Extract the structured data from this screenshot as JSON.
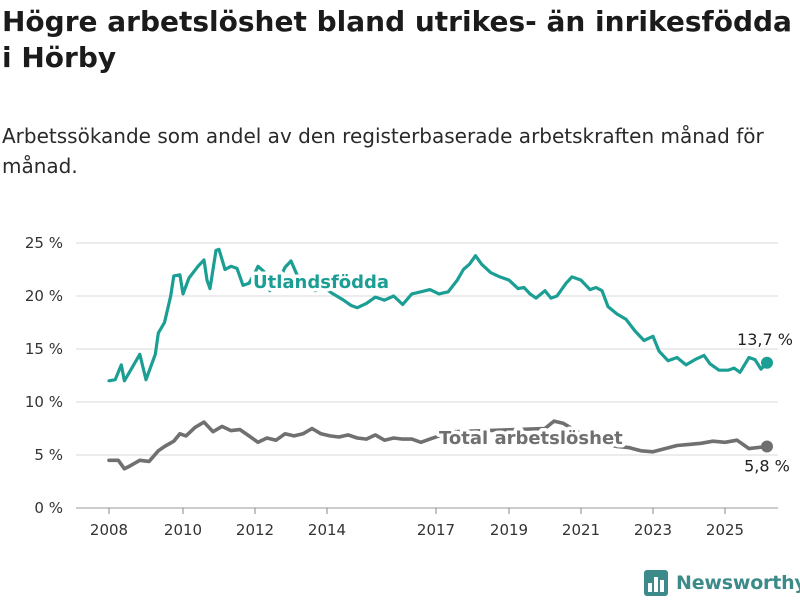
{
  "header": {
    "title": "Högre arbetslöshet bland utrikes- än inrikesfödda i Hörby",
    "subtitle": "Arbetssökande som andel av den registerbaserade arbetskraften månad för månad."
  },
  "brand": {
    "name": "Newsworthy",
    "logo_icon": "bar-chart-icon",
    "color": "#3d8a8a"
  },
  "chart_data": {
    "type": "line",
    "title": "",
    "xlabel": "",
    "ylabel": "",
    "x_ticks": [
      "2008",
      "2010",
      "2012",
      "2014",
      "2017",
      "2019",
      "2021",
      "2023",
      "2025"
    ],
    "y_ticks": [
      "0 %",
      "5 %",
      "10 %",
      "15 %",
      "20 %",
      "25 %"
    ],
    "ylim": [
      0,
      25
    ],
    "grid": true,
    "series": [
      {
        "name": "Utlandsfödda",
        "color": "#1b9e93",
        "end_label": "13,7 %",
        "points": [
          [
            "2008-01",
            12.0
          ],
          [
            "2008-03",
            12.1
          ],
          [
            "2008-05",
            13.5
          ],
          [
            "2008-06",
            12.0
          ],
          [
            "2008-08",
            13.0
          ],
          [
            "2008-11",
            14.5
          ],
          [
            "2009-01",
            12.1
          ],
          [
            "2009-04",
            14.5
          ],
          [
            "2009-05",
            16.5
          ],
          [
            "2009-07",
            17.5
          ],
          [
            "2009-09",
            20.0
          ],
          [
            "2009-10",
            21.9
          ],
          [
            "2009-12",
            22.0
          ],
          [
            "2010-01",
            20.2
          ],
          [
            "2010-03",
            21.7
          ],
          [
            "2010-06",
            22.8
          ],
          [
            "2010-08",
            23.4
          ],
          [
            "2010-09",
            21.5
          ],
          [
            "2010-10",
            20.7
          ],
          [
            "2010-12",
            24.3
          ],
          [
            "2011-01",
            24.4
          ],
          [
            "2011-03",
            22.5
          ],
          [
            "2011-05",
            22.8
          ],
          [
            "2011-07",
            22.6
          ],
          [
            "2011-09",
            21.0
          ],
          [
            "2011-11",
            21.2
          ],
          [
            "2012-01",
            22.2
          ],
          [
            "2012-02",
            22.8
          ],
          [
            "2012-04",
            22.3
          ],
          [
            "2012-06",
            20.5
          ],
          [
            "2012-09",
            21.5
          ],
          [
            "2012-11",
            22.7
          ],
          [
            "2013-01",
            23.3
          ],
          [
            "2013-03",
            22.0
          ],
          [
            "2013-06",
            21.2
          ],
          [
            "2013-09",
            20.5
          ],
          [
            "2013-12",
            20.8
          ],
          [
            "2014-03",
            20.2
          ],
          [
            "2014-06",
            19.7
          ],
          [
            "2014-09",
            19.1
          ],
          [
            "2014-11",
            18.9
          ],
          [
            "2015-02",
            19.3
          ],
          [
            "2015-05",
            19.9
          ],
          [
            "2015-08",
            19.6
          ],
          [
            "2015-11",
            20.0
          ],
          [
            "2016-02",
            19.2
          ],
          [
            "2016-05",
            20.2
          ],
          [
            "2016-08",
            20.4
          ],
          [
            "2016-11",
            20.6
          ],
          [
            "2017-02",
            20.2
          ],
          [
            "2017-05",
            20.4
          ],
          [
            "2017-08",
            21.5
          ],
          [
            "2017-10",
            22.5
          ],
          [
            "2017-12",
            23.0
          ],
          [
            "2018-02",
            23.8
          ],
          [
            "2018-04",
            23.0
          ],
          [
            "2018-07",
            22.2
          ],
          [
            "2018-10",
            21.8
          ],
          [
            "2019-01",
            21.5
          ],
          [
            "2019-04",
            20.7
          ],
          [
            "2019-06",
            20.8
          ],
          [
            "2019-08",
            20.2
          ],
          [
            "2019-10",
            19.8
          ],
          [
            "2020-01",
            20.5
          ],
          [
            "2020-03",
            19.8
          ],
          [
            "2020-05",
            20.0
          ],
          [
            "2020-08",
            21.2
          ],
          [
            "2020-10",
            21.8
          ],
          [
            "2021-01",
            21.5
          ],
          [
            "2021-04",
            20.6
          ],
          [
            "2021-06",
            20.8
          ],
          [
            "2021-08",
            20.5
          ],
          [
            "2021-10",
            19.0
          ],
          [
            "2022-01",
            18.3
          ],
          [
            "2022-04",
            17.8
          ],
          [
            "2022-07",
            16.7
          ],
          [
            "2022-10",
            15.8
          ],
          [
            "2023-01",
            16.2
          ],
          [
            "2023-03",
            14.8
          ],
          [
            "2023-06",
            13.9
          ],
          [
            "2023-09",
            14.2
          ],
          [
            "2023-12",
            13.5
          ],
          [
            "2024-03",
            14.0
          ],
          [
            "2024-06",
            14.4
          ],
          [
            "2024-08",
            13.6
          ],
          [
            "2024-11",
            13.0
          ],
          [
            "2025-02",
            13.0
          ],
          [
            "2025-04",
            13.2
          ],
          [
            "2025-06",
            12.8
          ],
          [
            "2025-09",
            14.2
          ],
          [
            "2025-11",
            14.0
          ],
          [
            "2026-01",
            13.1
          ],
          [
            "2026-03",
            13.7
          ]
        ]
      },
      {
        "name": "Total arbetslöshet",
        "color": "#707070",
        "end_label": "5,8 %",
        "points": [
          [
            "2008-01",
            4.5
          ],
          [
            "2008-04",
            4.5
          ],
          [
            "2008-06",
            3.7
          ],
          [
            "2008-08",
            4.0
          ],
          [
            "2008-11",
            4.5
          ],
          [
            "2009-02",
            4.4
          ],
          [
            "2009-05",
            5.4
          ],
          [
            "2009-07",
            5.8
          ],
          [
            "2009-10",
            6.3
          ],
          [
            "2009-12",
            7.0
          ],
          [
            "2010-02",
            6.8
          ],
          [
            "2010-05",
            7.6
          ],
          [
            "2010-08",
            8.1
          ],
          [
            "2010-11",
            7.2
          ],
          [
            "2011-02",
            7.7
          ],
          [
            "2011-05",
            7.3
          ],
          [
            "2011-08",
            7.4
          ],
          [
            "2011-11",
            6.8
          ],
          [
            "2012-02",
            6.2
          ],
          [
            "2012-05",
            6.6
          ],
          [
            "2012-08",
            6.4
          ],
          [
            "2012-11",
            7.0
          ],
          [
            "2013-02",
            6.8
          ],
          [
            "2013-05",
            7.0
          ],
          [
            "2013-08",
            7.5
          ],
          [
            "2013-11",
            7.0
          ],
          [
            "2014-02",
            6.8
          ],
          [
            "2014-05",
            6.7
          ],
          [
            "2014-08",
            6.9
          ],
          [
            "2014-11",
            6.6
          ],
          [
            "2015-02",
            6.5
          ],
          [
            "2015-05",
            6.9
          ],
          [
            "2015-08",
            6.4
          ],
          [
            "2015-11",
            6.6
          ],
          [
            "2016-02",
            6.5
          ],
          [
            "2016-05",
            6.5
          ],
          [
            "2016-08",
            6.2
          ],
          [
            "2016-11",
            6.5
          ],
          [
            "2017-02",
            6.8
          ],
          [
            "2017-04",
            7.1
          ],
          [
            "2017-07",
            7.2
          ],
          [
            "2020-01",
            7.5
          ],
          [
            "2020-04",
            8.2
          ],
          [
            "2020-07",
            8.0
          ],
          [
            "2020-10",
            7.5
          ],
          [
            "2021-01",
            7.0
          ],
          [
            "2021-05",
            6.5
          ],
          [
            "2021-09",
            6.1
          ],
          [
            "2022-01",
            5.8
          ],
          [
            "2022-05",
            5.7
          ],
          [
            "2022-09",
            5.4
          ],
          [
            "2023-01",
            5.3
          ],
          [
            "2023-05",
            5.6
          ],
          [
            "2023-09",
            5.9
          ],
          [
            "2024-01",
            6.0
          ],
          [
            "2024-05",
            6.1
          ],
          [
            "2024-09",
            6.3
          ],
          [
            "2025-01",
            6.2
          ],
          [
            "2025-05",
            6.4
          ],
          [
            "2025-09",
            5.6
          ],
          [
            "2026-03",
            5.8
          ]
        ]
      }
    ]
  }
}
